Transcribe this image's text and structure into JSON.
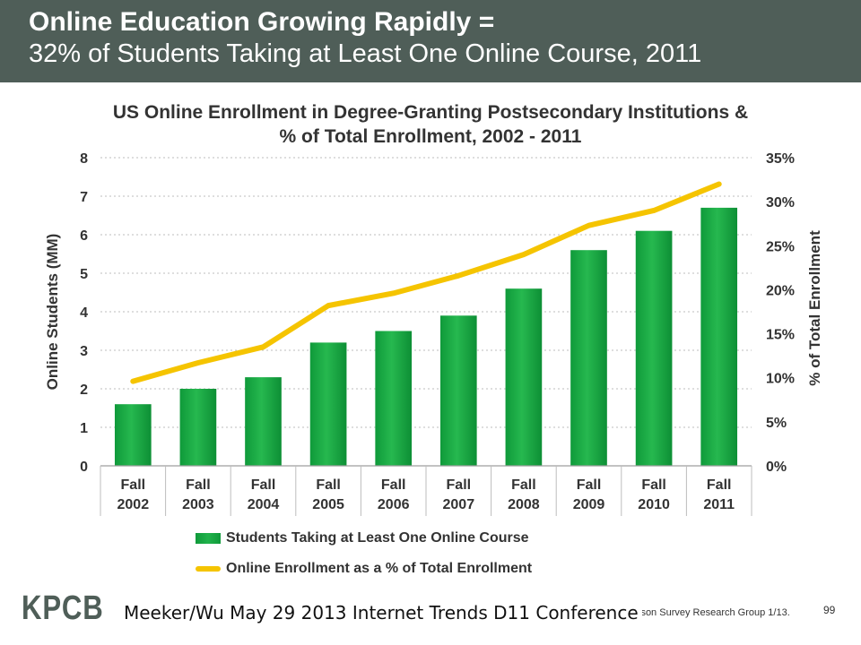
{
  "header": {
    "title_line1": "Online Education Growing Rapidly =",
    "title_line2": "32% of Students Taking at Least One Online Course, 2011",
    "background": "#4f5e58"
  },
  "chart_data": {
    "type": "bar",
    "title_line1": "US Online Enrollment in Degree-Granting Postsecondary Institutions &",
    "title_line2": "% of Total Enrollment, 2002 - 2011",
    "categories": [
      [
        "Fall",
        "2002"
      ],
      [
        "Fall",
        "2003"
      ],
      [
        "Fall",
        "2004"
      ],
      [
        "Fall",
        "2005"
      ],
      [
        "Fall",
        "2006"
      ],
      [
        "Fall",
        "2007"
      ],
      [
        "Fall",
        "2008"
      ],
      [
        "Fall",
        "2009"
      ],
      [
        "Fall",
        "2010"
      ],
      [
        "Fall",
        "2011"
      ]
    ],
    "ylabel": "Online Students (MM)",
    "y2label": "% of Total Enrollment",
    "ylim": [
      0,
      8
    ],
    "y2lim": [
      0,
      35
    ],
    "yticks": [
      "0",
      "1",
      "2",
      "3",
      "4",
      "5",
      "6",
      "7",
      "8"
    ],
    "y2ticks": [
      "0%",
      "5%",
      "10%",
      "15%",
      "20%",
      "25%",
      "30%",
      "35%"
    ],
    "grid": true,
    "series": [
      {
        "name": "Students Taking at Least One Online Course",
        "type": "bar",
        "axis": "left",
        "color": "#1fa847",
        "values": [
          1.6,
          2.0,
          2.3,
          3.2,
          3.5,
          3.9,
          4.6,
          5.6,
          6.1,
          6.7
        ]
      },
      {
        "name": "Online Enrollment as a % of Total Enrollment",
        "type": "line",
        "axis": "right",
        "color": "#f5c400",
        "values": [
          9.6,
          11.7,
          13.5,
          18.2,
          19.6,
          21.6,
          24.0,
          27.3,
          29.0,
          32.0
        ]
      }
    ],
    "legend_position": "bottom"
  },
  "footer": {
    "logo": "KPCB",
    "note": "Meeker/Wu May 29 2013 Internet Trends D11 Conference",
    "source_fragment": "ison Survey Research Group 1/13.",
    "page_number": "99"
  }
}
